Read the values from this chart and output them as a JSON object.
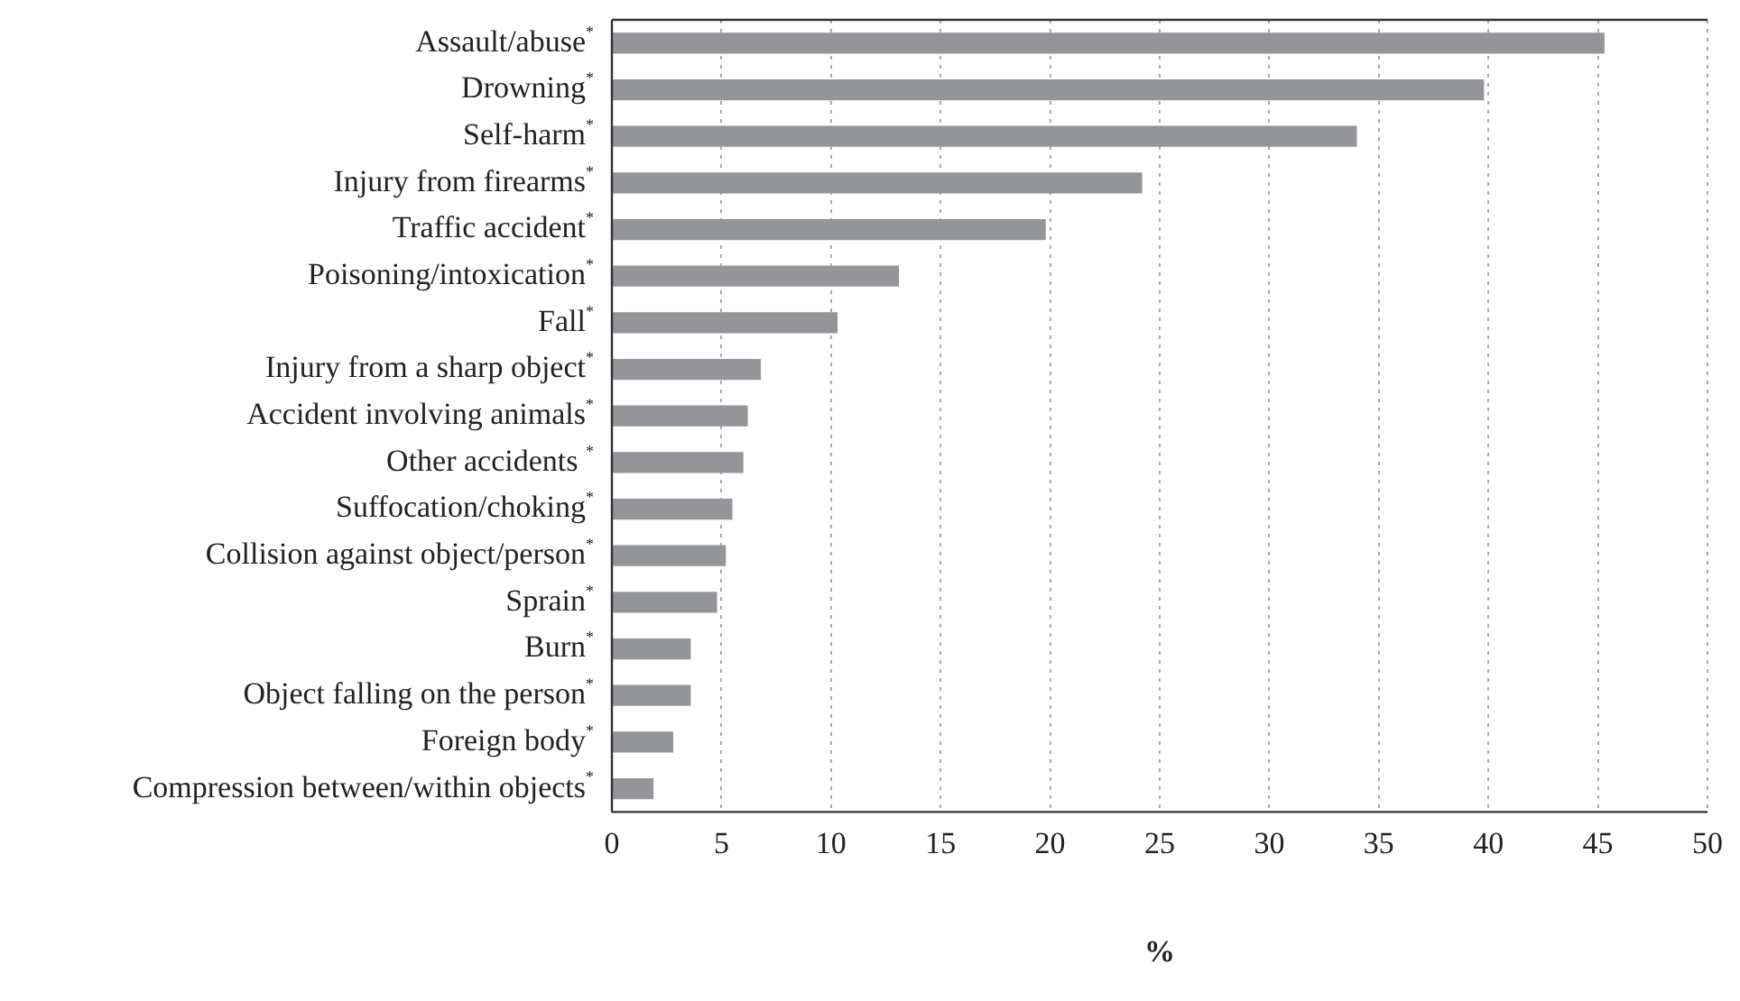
{
  "chart_data": {
    "type": "bar",
    "orientation": "horizontal",
    "xlabel": "%",
    "categories": [
      "Assault/abuse$^{*}$",
      "Drowning$^{*}$",
      "Self-harm$^{*}$",
      "Injury from firearms$^{*}$",
      "Traffic accident$^{*}$",
      "Poisoning/intoxication$^{*}$",
      "Fall$^{*}$",
      "Injury from a sharp object$^{*}$",
      "Accident involving animals$^{*}$",
      "Other accidents $^{*}$",
      "Suffocation/choking$^{*}$",
      "Collision against object/person$^{*}$",
      "Sprain$^{*}$",
      "Burn$^{*}$",
      "Object falling on the person$^{*}$",
      "Foreign body$^{*}$",
      "Compression between/within objects$^{*}$"
    ],
    "values": [
      45.3,
      39.8,
      34.0,
      24.2,
      19.8,
      13.1,
      10.3,
      6.8,
      6.2,
      6.0,
      5.5,
      5.2,
      4.8,
      3.6,
      3.6,
      2.8,
      1.9
    ],
    "color": "#939598",
    "xlim": [
      0,
      50
    ],
    "xticks": [
      0,
      5,
      10,
      15,
      20,
      25,
      30,
      35,
      40,
      45,
      50
    ],
    "grid": "x"
  }
}
